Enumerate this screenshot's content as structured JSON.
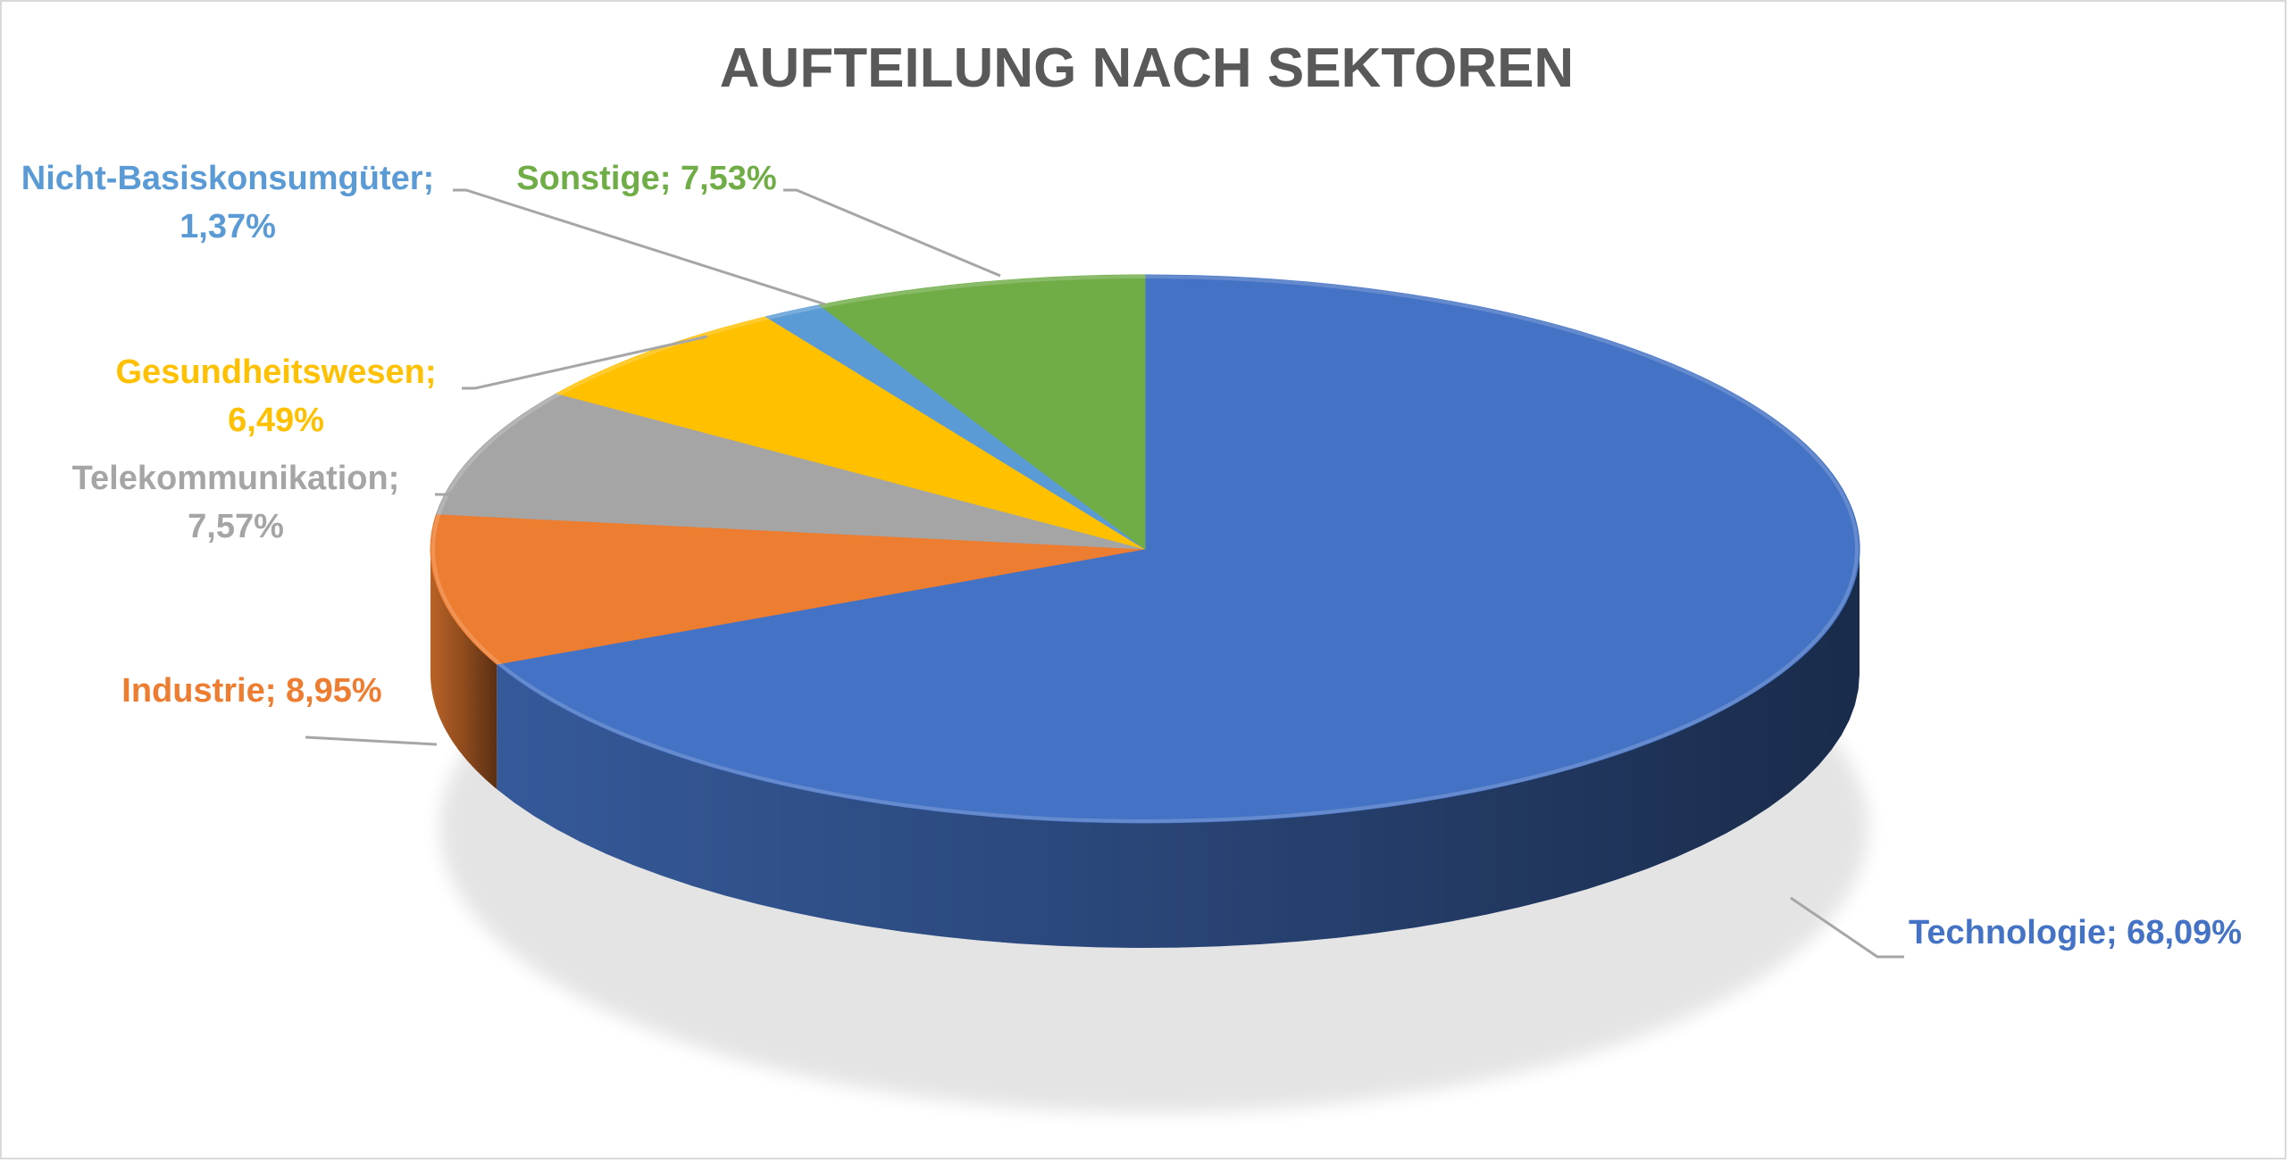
{
  "chart_data": {
    "type": "pie",
    "style": "3d",
    "title": "AUFTEILUNG NACH SEKTOREN",
    "legend": "none",
    "categories": [
      "Technologie",
      "Industrie",
      "Telekommunikation",
      "Gesundheitswesen",
      "Nicht-Basiskonsumgüter",
      "Sonstige"
    ],
    "values": [
      68.09,
      8.95,
      7.57,
      6.49,
      1.37,
      7.53
    ],
    "colors": [
      "#4472C4",
      "#ED7D31",
      "#A5A5A5",
      "#FFC000",
      "#5B9BD5",
      "#70AD47"
    ],
    "label_colors": [
      "#4472C4",
      "#ED7D31",
      "#A5A5A5",
      "#FFC000",
      "#5B9BD5",
      "#70AD47"
    ],
    "labels": [
      {
        "lines": [
          "Technologie; 68,09%"
        ]
      },
      {
        "lines": [
          "Industrie; 8,95%"
        ]
      },
      {
        "lines": [
          "Telekommunikation;",
          "7,57%"
        ]
      },
      {
        "lines": [
          "Gesundheitswesen;",
          "6,49%"
        ]
      },
      {
        "lines": [
          "Nicht-Basiskonsumgüter;",
          "1,37%"
        ]
      },
      {
        "lines": [
          "Sonstige; 7,53%"
        ]
      }
    ]
  }
}
